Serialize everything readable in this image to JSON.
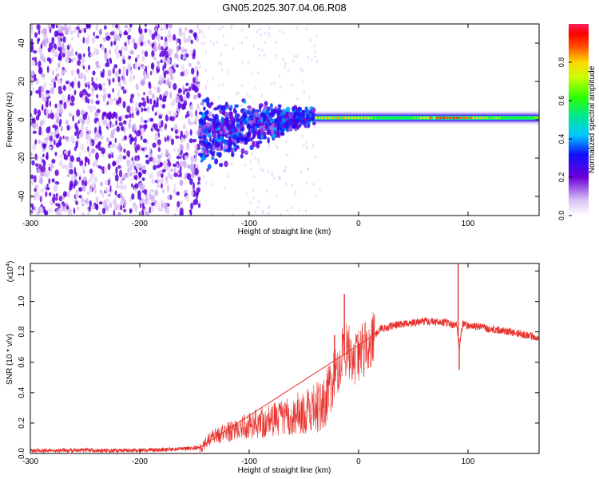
{
  "title": "GN05.2025.307.04.06.R08",
  "chart_data": [
    {
      "type": "heatmap",
      "title": "GN05.2025.307.04.06.R08",
      "xlabel": "Height of straight line (km)",
      "ylabel": "Frequency (Hz)",
      "xlim": [
        -300,
        165
      ],
      "ylim": [
        -50,
        50
      ],
      "xticks": [
        "-300",
        "-200",
        "-100",
        "0",
        "100"
      ],
      "yticks": [
        "-40",
        "-20",
        "0",
        "20",
        "40"
      ],
      "colorbar": {
        "label": "Normalized spectral amplitude",
        "range": [
          0,
          1
        ],
        "ticks": [
          "0.0",
          "0.2",
          "0.4",
          "0.6",
          "0.8"
        ]
      },
      "features": [
        {
          "region": "noise",
          "x": [
            -300,
            -145
          ],
          "y": [
            -50,
            50
          ],
          "amplitude": [
            0.0,
            0.15
          ]
        },
        {
          "region": "transition",
          "x": [
            -145,
            -40
          ],
          "y_center": [
            -8,
            2
          ],
          "amplitude": [
            0.1,
            0.4
          ]
        },
        {
          "region": "signal-line",
          "x": [
            -40,
            165
          ],
          "y_center": 1,
          "amplitude": [
            0.5,
            0.9
          ]
        }
      ]
    },
    {
      "type": "line",
      "xlabel": "Height of straight line (km)",
      "ylabel": "SNR (10 * v/v)",
      "scale_label": "(x10",
      "scale_exp": "4",
      "scale_close": ")",
      "xlim": [
        -300,
        165
      ],
      "ylim": [
        0,
        1.25
      ],
      "xticks": [
        "-300",
        "-200",
        "-100",
        "0",
        "100"
      ],
      "yticks": [
        "0.0",
        "0.2",
        "0.4",
        "0.6",
        "0.8",
        "1.0",
        "1.2"
      ],
      "color": "#e8322e",
      "series": [
        {
          "x": [
            -300,
            -250,
            -200,
            -160,
            -145,
            -135,
            -120,
            -100,
            -80,
            -60,
            -40,
            -30,
            -25,
            -20,
            -15,
            -10,
            -5,
            0,
            10,
            20,
            30,
            40,
            60,
            80,
            90,
            92,
            95,
            100,
            120,
            140,
            165
          ],
          "y": [
            0.02,
            0.02,
            0.02,
            0.03,
            0.04,
            0.1,
            0.14,
            0.18,
            0.22,
            0.25,
            0.3,
            0.36,
            0.45,
            0.55,
            0.65,
            0.7,
            0.6,
            0.65,
            0.72,
            0.82,
            0.84,
            0.85,
            0.87,
            0.86,
            0.84,
            0.7,
            0.85,
            0.84,
            0.82,
            0.8,
            0.76
          ]
        }
      ],
      "spikes": [
        {
          "x": -13,
          "y": 1.05
        },
        {
          "x": -22,
          "y": 0.78
        },
        {
          "x": 91,
          "y": 1.25
        },
        {
          "x": 92,
          "y": 0.55
        }
      ]
    }
  ]
}
